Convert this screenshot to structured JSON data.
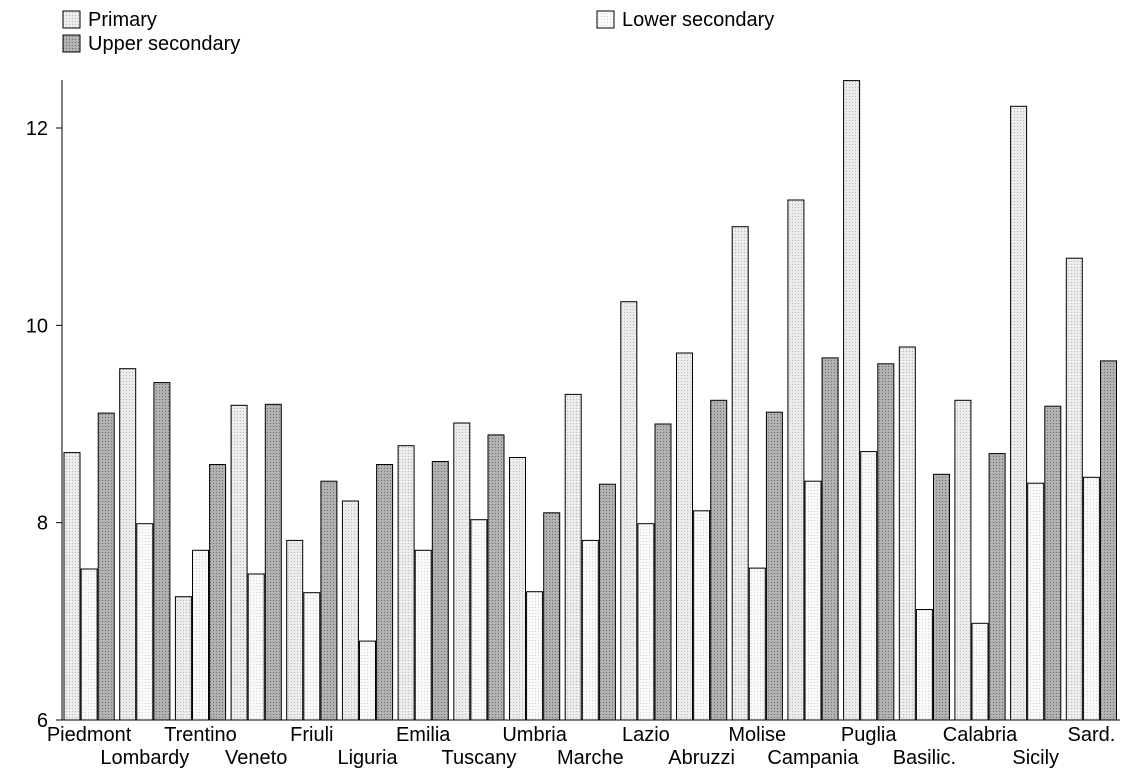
{
  "chart_data": {
    "type": "bar",
    "title": "",
    "xlabel": "",
    "ylabel": "",
    "ylim": [
      6,
      12.5
    ],
    "yticks": [
      6,
      8,
      10,
      12
    ],
    "grid": false,
    "legend_position": "top",
    "categories": [
      "Piedmont",
      "Lombardy",
      "Trentino",
      "Veneto",
      "Friuli",
      "Liguria",
      "Emilia",
      "Tuscany",
      "Umbria",
      "Marche",
      "Lazio",
      "Abruzzi",
      "Molise",
      "Campania",
      "Puglia",
      "Basilic.",
      "Calabria",
      "Sicily",
      "Sard."
    ],
    "series": [
      {
        "name": "Primary",
        "color": "#e4e4e4",
        "values": [
          8.71,
          9.56,
          7.25,
          9.19,
          7.82,
          8.22,
          8.78,
          9.01,
          8.66,
          9.3,
          10.24,
          9.72,
          11.0,
          11.27,
          12.48,
          9.78,
          9.24,
          12.22,
          10.68
        ]
      },
      {
        "name": "Lower secondary",
        "color": "#f6f6f6",
        "values": [
          7.53,
          7.99,
          7.72,
          7.48,
          7.29,
          6.8,
          7.72,
          8.03,
          7.3,
          7.82,
          7.99,
          8.12,
          7.54,
          8.42,
          8.72,
          7.12,
          6.98,
          8.4,
          8.46
        ]
      },
      {
        "name": "Upper secondary",
        "color": "#a9a9a9",
        "values": [
          9.11,
          9.42,
          8.59,
          9.2,
          8.42,
          8.59,
          8.62,
          8.89,
          8.1,
          8.39,
          9.0,
          9.24,
          9.12,
          9.67,
          9.61,
          8.49,
          8.7,
          9.18,
          9.64
        ]
      }
    ]
  }
}
